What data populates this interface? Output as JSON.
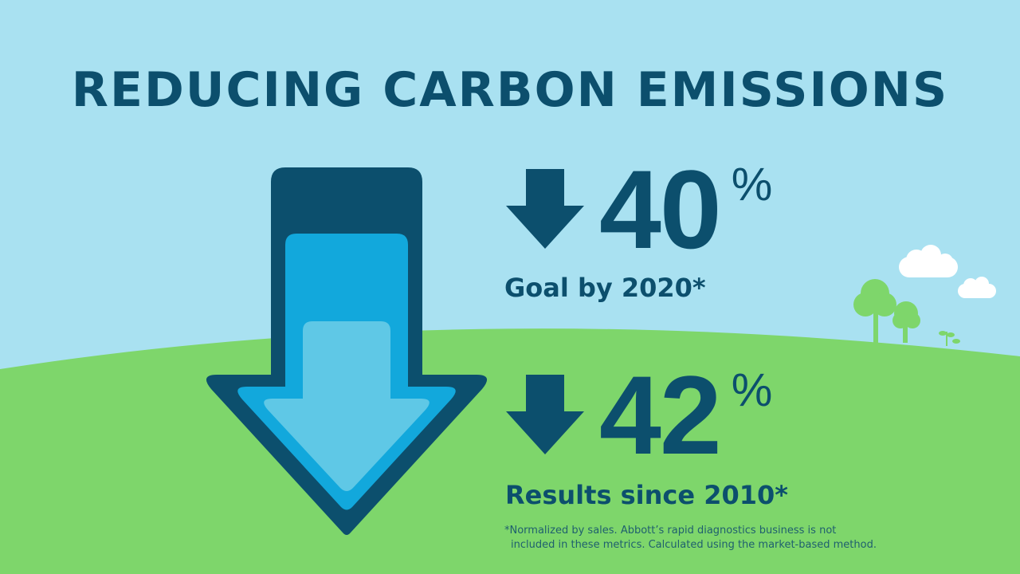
{
  "title": "REDUCING CARBON EMISSIONS",
  "stats": [
    {
      "value": "40",
      "unit": "%",
      "label": "Goal by 2020*",
      "icon": "down-arrow-icon"
    },
    {
      "value": "42",
      "unit": "%",
      "label": "Results since 2010*",
      "icon": "down-arrow-icon"
    }
  ],
  "footnote": {
    "line1": "*Normalized by sales. Abbott’s rapid diagnostics business is not",
    "line2": "included in these metrics. Calculated using the market-based method."
  },
  "colors": {
    "sky": "#a9e1f1",
    "grass": "#7ed66b",
    "navy": "#0c4f6d",
    "blue": "#12a8dc",
    "light_blue": "#5fc8e6"
  }
}
